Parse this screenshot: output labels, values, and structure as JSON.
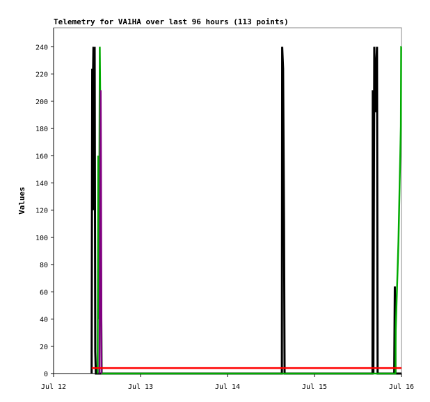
{
  "chart_data": {
    "type": "line",
    "title": "Telemetry for VA1HA over last 96 hours (113 points)",
    "xlabel": "",
    "ylabel": "Values",
    "ylim": [
      0,
      254
    ],
    "xlim": [
      "Jul 12 00:00",
      "Jul 16 00:00"
    ],
    "x_ticks": [
      "Jul 12",
      "Jul 13",
      "Jul 14",
      "Jul 15",
      "Jul 16"
    ],
    "y_ticks": [
      0,
      20,
      40,
      60,
      80,
      100,
      120,
      140,
      160,
      180,
      200,
      220,
      240
    ],
    "grid": false,
    "series": [
      {
        "color": "#000000",
        "points": [
          [
            "Jul 12 10:30",
            0
          ],
          [
            "Jul 12 10:40",
            224
          ],
          [
            "Jul 12 10:50",
            208
          ],
          [
            "Jul 12 11:00",
            240
          ],
          [
            "Jul 12 11:10",
            120
          ],
          [
            "Jul 12 11:20",
            240
          ],
          [
            "Jul 12 11:30",
            16
          ],
          [
            "Jul 12 11:40",
            0
          ],
          [
            "Jul 14 15:00",
            0
          ],
          [
            "Jul 14 15:05",
            240
          ],
          [
            "Jul 14 15:20",
            224
          ],
          [
            "Jul 14 15:35",
            112
          ],
          [
            "Jul 14 15:45",
            0
          ],
          [
            "Jul 15 16:00",
            0
          ],
          [
            "Jul 15 16:05",
            208
          ],
          [
            "Jul 15 16:15",
            0
          ],
          [
            "Jul 15 16:30",
            240
          ],
          [
            "Jul 15 16:45",
            192
          ],
          [
            "Jul 15 17:00",
            224
          ],
          [
            "Jul 15 17:15",
            240
          ],
          [
            "Jul 15 17:25",
            0
          ],
          [
            "Jul 15 22:00",
            0
          ],
          [
            "Jul 15 22:10",
            64
          ],
          [
            "Jul 15 22:20",
            0
          ],
          [
            "Jul 16 00:00",
            0
          ]
        ]
      },
      {
        "color": "#00aa00",
        "points": [
          [
            "Jul 12 12:10",
            0
          ],
          [
            "Jul 12 12:20",
            160
          ],
          [
            "Jul 12 12:30",
            40
          ],
          [
            "Jul 12 12:45",
            240
          ],
          [
            "Jul 12 12:55",
            192
          ],
          [
            "Jul 12 13:10",
            50
          ],
          [
            "Jul 12 13:20",
            0
          ],
          [
            "Jul 15 22:20",
            0
          ],
          [
            "Jul 15 22:25",
            32
          ],
          [
            "Jul 15 22:40",
            54
          ],
          [
            "Jul 15 22:55",
            75
          ],
          [
            "Jul 15 23:10",
            97
          ],
          [
            "Jul 15 23:20",
            118
          ],
          [
            "Jul 15 23:30",
            140
          ],
          [
            "Jul 15 23:40",
            160
          ],
          [
            "Jul 15 23:50",
            182
          ],
          [
            "Jul 15 23:55",
            240
          ],
          [
            "Jul 16 00:00",
            240
          ]
        ]
      },
      {
        "color": "#800080",
        "points": [
          [
            "Jul 12 12:40",
            0
          ],
          [
            "Jul 12 12:50",
            112
          ],
          [
            "Jul 12 13:00",
            208
          ],
          [
            "Jul 12 13:05",
            156
          ],
          [
            "Jul 12 13:15",
            0
          ]
        ]
      },
      {
        "color": "#ff0000",
        "points": [
          [
            "Jul 12 10:30",
            4
          ],
          [
            "Jul 16 00:00",
            4
          ]
        ]
      }
    ]
  }
}
